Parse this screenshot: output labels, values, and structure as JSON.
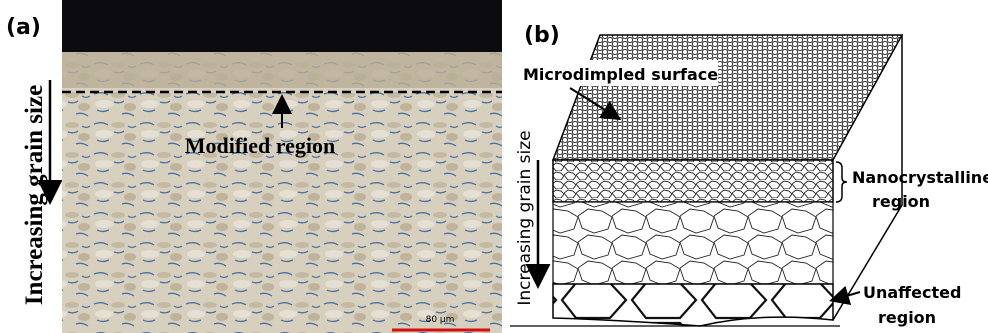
{
  "panel_a": {
    "label": "(a)",
    "side_label": "Increasing grain size",
    "region_label": "Modified region",
    "scale_bar": "80 µm"
  },
  "panel_b": {
    "label": "(b)",
    "surface_label": "Microdimpled surface",
    "side_label": "Increasing grain size",
    "nanocrystalline_label": [
      "Nanocrystalline",
      "region"
    ],
    "unaffected_label": [
      "Unaffected",
      "region"
    ]
  }
}
